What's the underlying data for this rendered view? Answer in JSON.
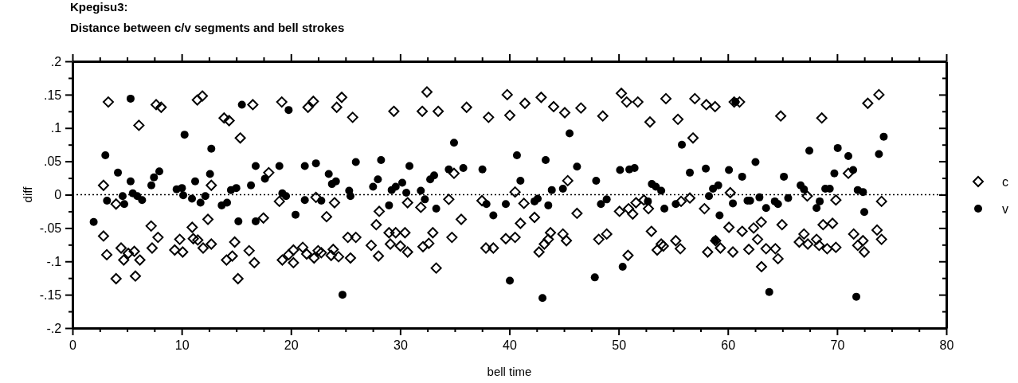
{
  "chart_data": {
    "type": "scatter",
    "title": "Kpegisu3:",
    "subtitle": "Distance between c/v segments and bell strokes",
    "xlabel": "bell time",
    "ylabel": "diff",
    "xlim": [
      0,
      80
    ],
    "xticks": [
      0,
      {
        "value": 2.5,
        "label": null
      },
      {
        "value": 5,
        "label": null
      },
      {
        "value": 7.5,
        "label": null
      },
      10,
      {
        "value": 12.5,
        "label": null
      },
      {
        "value": 15,
        "label": null
      },
      {
        "value": 17.5,
        "label": null
      },
      20,
      {
        "value": 22.5,
        "label": null
      },
      {
        "value": 25,
        "label": null
      },
      {
        "value": 27.5,
        "label": null
      },
      30,
      {
        "value": 32.5,
        "label": null
      },
      {
        "value": 35,
        "label": null
      },
      {
        "value": 37.5,
        "label": null
      },
      40,
      {
        "value": 42.5,
        "label": null
      },
      {
        "value": 45,
        "label": null
      },
      {
        "value": 47.5,
        "label": null
      },
      50,
      {
        "value": 52.5,
        "label": null
      },
      {
        "value": 55,
        "label": null
      },
      {
        "value": 57.5,
        "label": null
      },
      60,
      {
        "value": 62.5,
        "label": null
      },
      {
        "value": 65,
        "label": null
      },
      {
        "value": 67.5,
        "label": null
      },
      70,
      {
        "value": 72.5,
        "label": null
      },
      {
        "value": 75,
        "label": null
      },
      {
        "value": 77.5,
        "label": null
      },
      80
    ],
    "ylim": [
      -0.2,
      0.2
    ],
    "yticks": [
      {
        "value": -0.2,
        "label": "-.2"
      },
      {
        "value": -0.175,
        "label": null
      },
      {
        "value": -0.15,
        "label": "-.15"
      },
      {
        "value": -0.125,
        "label": null
      },
      {
        "value": -0.1,
        "label": "-.1"
      },
      {
        "value": -0.075,
        "label": null
      },
      {
        "value": -0.05,
        "label": "-.05"
      },
      {
        "value": -0.025,
        "label": null
      },
      0,
      {
        "value": 0.025,
        "label": null
      },
      {
        "value": 0.05,
        "label": ".05"
      },
      {
        "value": 0.075,
        "label": null
      },
      {
        "value": 0.1,
        "label": ".1"
      },
      {
        "value": 0.125,
        "label": null
      },
      {
        "value": 0.15,
        "label": ".15"
      },
      {
        "value": 0.175,
        "label": null
      },
      {
        "value": 0.2,
        "label": ".2"
      }
    ],
    "ref_lines": [
      {
        "axis": "y",
        "value": 0,
        "line_style": "dotted",
        "color": "#000000"
      }
    ],
    "legend": "right",
    "series": [
      {
        "name": "c",
        "color": "#000000",
        "marker": "diamond",
        "x": [
          3.28,
          2.84,
          3.99,
          2.84,
          3.14,
          3.99,
          4.45,
          4.69,
          5.11,
          5.66,
          5.76,
          6.17,
          6.08,
          7.2,
          7.29,
          7.83,
          7.66,
          8.12,
          9.36,
          9.82,
          10.09,
          10.96,
          11.06,
          11.47,
          11.96,
          12.4,
          12.71,
          12.71,
          11.43,
          11.89,
          13.88,
          14.34,
          14.1,
          14.63,
          14.85,
          15.15,
          15.36,
          16.17,
          16.65,
          16.51,
          17.48,
          17.97,
          18.94,
          19.16,
          19.21,
          19.79,
          21.56,
          22.05,
          24.19,
          24.65,
          25.65,
          29.42,
          32.02,
          32.45,
          33.48,
          36.08,
          38.09,
          39.8,
          40.04,
          20.23,
          20.23,
          21.08,
          21.44,
          22.12,
          22.49,
          22.78,
          23.87,
          23.68,
          24.36,
          25.45,
          25.21,
          25.94,
          23.26,
          23.99,
          22.29,
          27.35,
          28.01,
          27.81,
          28.08,
          28.98,
          29.1,
          29.59,
          30.02,
          30.44,
          30.68,
          30.68,
          31.89,
          32.09,
          32.62,
          32.99,
          33.3,
          34.45,
          34.74,
          34.93,
          35.59,
          37.49,
          37.85,
          38.53,
          39.67,
          40.52,
          40.52,
          41.01,
          41.33,
          41.42,
          42.3,
          42.71,
          43.2,
          43.56,
          43.76,
          42.91,
          44.05,
          44.9,
          45.22,
          45.07,
          45.34,
          46.19,
          46.55,
          48.18,
          48.91,
          48.55,
          50.25,
          50.74,
          51.76,
          50.08,
          50.86,
          50.91,
          51.29,
          51.59,
          52.31,
          52.73,
          52.87,
          53.0,
          53.53,
          53.9,
          54.09,
          54.33,
          55.23,
          55.43,
          55.65,
          55.72,
          56.52,
          56.81,
          56.98,
          57.86,
          58.03,
          58.83,
          58.15,
          58.88,
          59.32,
          60.1,
          60.58,
          61.07,
          60.22,
          60.46,
          61.31,
          61.92,
          62.36,
          62.72,
          63.06,
          63.08,
          63.5,
          64.35,
          64.59,
          64.84,
          64.96,
          66.54,
          66.97,
          67.27,
          67.32,
          68.12,
          68.36,
          68.6,
          68.72,
          69.09,
          69.58,
          69.89,
          69.89,
          71.03,
          71.52,
          71.89,
          72.37,
          72.49,
          72.81,
          73.66,
          73.83,
          74.07,
          74.07
        ],
        "values": [
          0.139,
          0.014,
          -0.014,
          -0.062,
          -0.09,
          -0.126,
          -0.08,
          -0.098,
          -0.088,
          -0.085,
          -0.122,
          -0.098,
          0.104,
          -0.047,
          -0.08,
          -0.064,
          0.135,
          0.131,
          -0.083,
          -0.067,
          -0.086,
          -0.049,
          -0.066,
          -0.068,
          -0.08,
          -0.037,
          -0.074,
          0.014,
          0.142,
          0.148,
          0.115,
          0.111,
          -0.098,
          -0.092,
          -0.071,
          -0.126,
          0.085,
          -0.084,
          -0.102,
          0.135,
          -0.035,
          0.033,
          -0.01,
          0.139,
          -0.098,
          -0.09,
          0.131,
          0.14,
          0.131,
          0.146,
          0.116,
          0.125,
          0.125,
          0.154,
          0.125,
          0.131,
          0.116,
          0.15,
          0.119,
          -0.083,
          -0.102,
          -0.079,
          -0.089,
          -0.095,
          -0.084,
          -0.087,
          -0.082,
          -0.091,
          -0.093,
          -0.095,
          -0.064,
          -0.064,
          -0.033,
          -0.012,
          -0.004,
          -0.076,
          -0.092,
          -0.045,
          -0.025,
          -0.057,
          -0.074,
          -0.057,
          -0.077,
          -0.057,
          -0.086,
          -0.012,
          -0.019,
          -0.078,
          -0.073,
          -0.057,
          -0.11,
          -0.007,
          -0.064,
          0.032,
          -0.037,
          -0.009,
          -0.08,
          -0.08,
          -0.066,
          0.004,
          -0.064,
          -0.043,
          -0.013,
          0.137,
          -0.034,
          -0.086,
          -0.074,
          -0.067,
          -0.057,
          0.146,
          0.132,
          -0.059,
          -0.069,
          0.123,
          0.021,
          -0.028,
          0.13,
          -0.067,
          -0.059,
          0.118,
          0.152,
          0.139,
          0.139,
          -0.025,
          -0.091,
          -0.021,
          -0.029,
          -0.012,
          -0.008,
          -0.021,
          0.109,
          -0.055,
          -0.083,
          -0.074,
          -0.077,
          0.144,
          -0.069,
          0.113,
          -0.081,
          -0.01,
          -0.005,
          0.085,
          0.144,
          -0.021,
          0.135,
          0.132,
          -0.086,
          -0.069,
          -0.08,
          -0.049,
          0.139,
          0.139,
          0.003,
          -0.086,
          -0.055,
          -0.082,
          -0.05,
          -0.067,
          -0.041,
          -0.108,
          -0.081,
          -0.081,
          -0.096,
          0.118,
          -0.045,
          -0.071,
          -0.059,
          -0.002,
          -0.074,
          -0.067,
          -0.076,
          0.115,
          -0.045,
          -0.081,
          -0.043,
          -0.008,
          -0.079,
          0.032,
          -0.059,
          -0.076,
          -0.069,
          -0.086,
          0.137,
          -0.053,
          0.15,
          -0.01,
          -0.067
        ]
      },
      {
        "name": "v",
        "color": "#000000",
        "marker": "circle",
        "x": [
          1.94,
          3.01,
          3.16,
          4.16,
          4.59,
          4.74,
          5.32,
          5.32,
          5.52,
          5.93,
          6.37,
          7.22,
          7.46,
          7.95,
          9.53,
          10.02,
          10.14,
          10.26,
          10.94,
          11.23,
          11.72,
          12.16,
          12.59,
          12.71,
          13.66,
          14.15,
          14.51,
          15.0,
          15.19,
          15.51,
          16.34,
          16.77,
          16.77,
          17.62,
          18.94,
          19.21,
          19.55,
          19.79,
          20.42,
          21.27,
          21.27,
          22.29,
          22.78,
          23.46,
          23.75,
          24.12,
          24.72,
          25.33,
          25.45,
          25.94,
          27.52,
          27.96,
          28.25,
          28.98,
          29.22,
          29.59,
          30.19,
          30.56,
          30.85,
          31.89,
          32.26,
          32.75,
          33.11,
          33.3,
          34.45,
          34.93,
          35.78,
          37.53,
          37.9,
          38.53,
          39.67,
          40.04,
          40.69,
          41.01,
          42.3,
          42.59,
          43.03,
          43.32,
          43.56,
          43.88,
          44.9,
          45.51,
          46.19,
          47.82,
          47.94,
          48.38,
          48.91,
          50.13,
          50.98,
          51.46,
          50.37,
          52.68,
          53.04,
          53.41,
          53.9,
          54.19,
          55.23,
          55.79,
          56.52,
          57.98,
          58.27,
          58.64,
          59.12,
          59.24,
          58.83,
          60.1,
          60.46,
          60.7,
          61.31,
          61.8,
          62.04,
          62.53,
          62.89,
          63.5,
          63.79,
          64.3,
          64.59,
          65.13,
          65.52,
          66.66,
          66.97,
          67.46,
          68.12,
          68.41,
          68.92,
          69.33,
          69.75,
          70.06,
          71.03,
          71.47,
          71.89,
          72.37,
          72.49,
          71.76,
          73.83,
          74.27
        ],
        "values": [
          -0.041,
          0.059,
          -0.009,
          0.033,
          -0.002,
          -0.014,
          0.02,
          0.144,
          0.002,
          -0.002,
          -0.008,
          0.014,
          0.026,
          0.035,
          0.008,
          0.01,
          -0.001,
          0.09,
          -0.006,
          0.02,
          -0.012,
          -0.002,
          0.031,
          0.069,
          -0.016,
          -0.012,
          0.007,
          0.01,
          -0.04,
          0.135,
          0.014,
          -0.04,
          0.043,
          0.024,
          0.043,
          0.002,
          -0.002,
          0.127,
          -0.03,
          0.043,
          -0.008,
          0.047,
          -0.009,
          0.031,
          0.016,
          0.02,
          -0.15,
          0.006,
          -0.002,
          0.049,
          0.012,
          0.023,
          0.052,
          -0.016,
          0.007,
          0.012,
          0.018,
          0.003,
          0.043,
          0.006,
          -0.007,
          0.023,
          0.029,
          -0.021,
          0.038,
          0.078,
          0.04,
          0.038,
          -0.014,
          -0.031,
          -0.014,
          -0.129,
          0.059,
          0.021,
          -0.01,
          -0.006,
          -0.155,
          0.052,
          -0.016,
          0.007,
          0.009,
          0.092,
          0.042,
          -0.124,
          0.021,
          -0.014,
          -0.007,
          0.037,
          0.038,
          0.04,
          -0.108,
          -0.01,
          0.016,
          0.012,
          0.006,
          -0.021,
          -0.014,
          0.075,
          0.033,
          0.039,
          -0.002,
          0.009,
          0.014,
          -0.031,
          -0.068,
          0.037,
          -0.013,
          0.139,
          0.027,
          -0.009,
          -0.009,
          0.049,
          -0.004,
          -0.02,
          -0.146,
          -0.01,
          -0.014,
          0.027,
          -0.005,
          0.014,
          0.008,
          0.066,
          -0.02,
          -0.01,
          0.009,
          0.009,
          0.032,
          0.07,
          0.058,
          0.037,
          0.007,
          0.004,
          -0.026,
          -0.153,
          0.061,
          0.087
        ]
      }
    ]
  }
}
